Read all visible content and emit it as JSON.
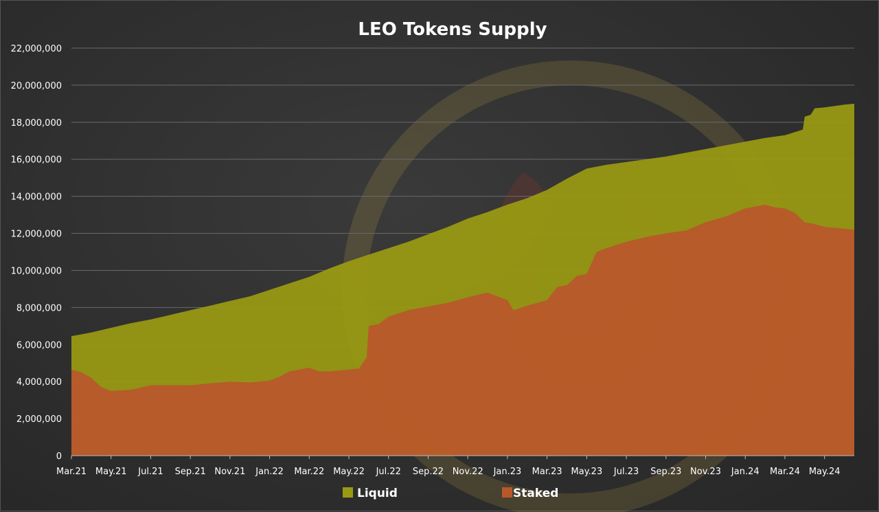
{
  "chart_data": {
    "type": "area",
    "title": "LEO Tokens Supply",
    "xlabel": "",
    "ylabel": "",
    "ylim": [
      0,
      22000000
    ],
    "y_ticks": [
      "0",
      "2,000,000",
      "4,000,000",
      "6,000,000",
      "8,000,000",
      "10,000,000",
      "12,000,000",
      "14,000,000",
      "16,000,000",
      "18,000,000",
      "20,000,000",
      "22,000,000"
    ],
    "y_tick_values": [
      0,
      2000000,
      4000000,
      6000000,
      8000000,
      10000000,
      12000000,
      14000000,
      16000000,
      18000000,
      20000000,
      22000000
    ],
    "x_ticks": [
      "Mar.21",
      "May.21",
      "Jul.21",
      "Sep.21",
      "Nov.21",
      "Jan.22",
      "Mar.22",
      "May.22",
      "Jul.22",
      "Sep.22",
      "Nov.22",
      "Jan.23",
      "Mar.23",
      "May.23",
      "Jul.23",
      "Sep.23",
      "Nov.23",
      "Jan.24",
      "Mar.24",
      "May.24"
    ],
    "x_tick_months": [
      0,
      2,
      4,
      6,
      8,
      10,
      12,
      14,
      16,
      18,
      20,
      22,
      24,
      26,
      28,
      30,
      32,
      34,
      36,
      38
    ],
    "x_range_months": [
      0,
      39.5
    ],
    "grid": true,
    "legend_position": "bottom",
    "colors": {
      "liquid": "#9a9a12",
      "staked": "#b8582a",
      "grid": "#6a6a6a",
      "axis": "#bdbdbd"
    },
    "series": [
      {
        "name": "Liquid",
        "note_stacked": "total supply (liquid + staked)",
        "points": [
          [
            0,
            6450000
          ],
          [
            1,
            6650000
          ],
          [
            2,
            6900000
          ],
          [
            3,
            7150000
          ],
          [
            4,
            7350000
          ],
          [
            5,
            7600000
          ],
          [
            6,
            7850000
          ],
          [
            7,
            8100000
          ],
          [
            8,
            8350000
          ],
          [
            9,
            8600000
          ],
          [
            10,
            8950000
          ],
          [
            11,
            9300000
          ],
          [
            12,
            9650000
          ],
          [
            13,
            10100000
          ],
          [
            14,
            10500000
          ],
          [
            15,
            10850000
          ],
          [
            16,
            11200000
          ],
          [
            17,
            11550000
          ],
          [
            18,
            11950000
          ],
          [
            19,
            12350000
          ],
          [
            20,
            12800000
          ],
          [
            21,
            13150000
          ],
          [
            22,
            13550000
          ],
          [
            23,
            13900000
          ],
          [
            24,
            14350000
          ],
          [
            25,
            14950000
          ],
          [
            26,
            15500000
          ],
          [
            27,
            15700000
          ],
          [
            28,
            15850000
          ],
          [
            29,
            16000000
          ],
          [
            30,
            16150000
          ],
          [
            31,
            16350000
          ],
          [
            32,
            16550000
          ],
          [
            33,
            16750000
          ],
          [
            34,
            16950000
          ],
          [
            35,
            17150000
          ],
          [
            36,
            17300000
          ],
          [
            36.9,
            17600000
          ],
          [
            37,
            18300000
          ],
          [
            37.3,
            18400000
          ],
          [
            37.5,
            18750000
          ],
          [
            38,
            18800000
          ],
          [
            39,
            18950000
          ],
          [
            39.5,
            19000000
          ]
        ]
      },
      {
        "name": "Staked",
        "points": [
          [
            0,
            4650000
          ],
          [
            0.5,
            4500000
          ],
          [
            1,
            4200000
          ],
          [
            1.5,
            3700000
          ],
          [
            2,
            3500000
          ],
          [
            3,
            3550000
          ],
          [
            4,
            3800000
          ],
          [
            5,
            3800000
          ],
          [
            6,
            3800000
          ],
          [
            7,
            3900000
          ],
          [
            8,
            4000000
          ],
          [
            9,
            3950000
          ],
          [
            10,
            4050000
          ],
          [
            10.5,
            4250000
          ],
          [
            11,
            4550000
          ],
          [
            12,
            4750000
          ],
          [
            12.5,
            4550000
          ],
          [
            13,
            4550000
          ],
          [
            14,
            4650000
          ],
          [
            14.5,
            4700000
          ],
          [
            14.9,
            5300000
          ],
          [
            15,
            7000000
          ],
          [
            15.5,
            7100000
          ],
          [
            16,
            7500000
          ],
          [
            17,
            7850000
          ],
          [
            18,
            8050000
          ],
          [
            19,
            8250000
          ],
          [
            20,
            8550000
          ],
          [
            21,
            8800000
          ],
          [
            22,
            8400000
          ],
          [
            22.3,
            7850000
          ],
          [
            23,
            8100000
          ],
          [
            24,
            8400000
          ],
          [
            24.5,
            9100000
          ],
          [
            25,
            9200000
          ],
          [
            25.5,
            9700000
          ],
          [
            26,
            9800000
          ],
          [
            26.5,
            11000000
          ],
          [
            27,
            11200000
          ],
          [
            28,
            11550000
          ],
          [
            29,
            11800000
          ],
          [
            30,
            12000000
          ],
          [
            31,
            12150000
          ],
          [
            32,
            12600000
          ],
          [
            33,
            12900000
          ],
          [
            34,
            13350000
          ],
          [
            35,
            13550000
          ],
          [
            35.5,
            13400000
          ],
          [
            36,
            13350000
          ],
          [
            36.5,
            13100000
          ],
          [
            37,
            12600000
          ],
          [
            37.5,
            12500000
          ],
          [
            38,
            12350000
          ],
          [
            39,
            12250000
          ],
          [
            39.5,
            12200000
          ]
        ]
      }
    ]
  }
}
